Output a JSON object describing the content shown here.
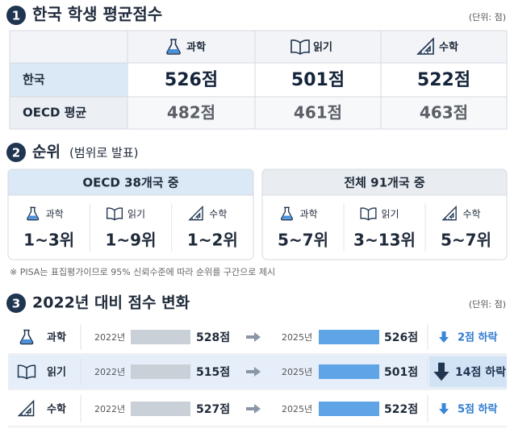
{
  "section1": {
    "number": "1",
    "title": "한국 학생 평균점수",
    "unit": "(단위: 점)",
    "table": {
      "headers": [
        "과학",
        "읽기",
        "수학"
      ],
      "rows": [
        {
          "label": "한국",
          "values": [
            "526점",
            "501점",
            "522점"
          ]
        },
        {
          "label": "OECD 평균",
          "values": [
            "482점",
            "461점",
            "463점"
          ]
        }
      ]
    }
  },
  "section2": {
    "number": "2",
    "title": "순위",
    "subtitle": "(범위로 발표)",
    "panels": [
      {
        "title": "OECD 38개국 중",
        "items": [
          {
            "subject": "과학",
            "rank": "1~3위"
          },
          {
            "subject": "읽기",
            "rank": "1~9위"
          },
          {
            "subject": "수학",
            "rank": "1~2위"
          }
        ]
      },
      {
        "title": "전체 91개국 중",
        "items": [
          {
            "subject": "과학",
            "rank": "5~7위"
          },
          {
            "subject": "읽기",
            "rank": "3~13위"
          },
          {
            "subject": "수학",
            "rank": "5~7위"
          }
        ]
      }
    ],
    "note": "※ PISA는 표집평가이므로 95% 신뢰수준에 따라 순위를 구간으로 제시"
  },
  "section3": {
    "number": "3",
    "title": "2022년 대비 점수 변화",
    "unit": "(단위: 점)",
    "rows": [
      {
        "subject": "과학",
        "year1": "2022년",
        "score1": "528점",
        "year2": "2025년",
        "score2": "526점",
        "change": "2점 하락"
      },
      {
        "subject": "읽기",
        "year1": "2022년",
        "score1": "515점",
        "year2": "2025년",
        "score2": "501점",
        "change": "14점 하락"
      },
      {
        "subject": "수학",
        "year1": "2022년",
        "score1": "527점",
        "year2": "2025년",
        "score2": "522점",
        "change": "5점 하락"
      }
    ]
  }
}
